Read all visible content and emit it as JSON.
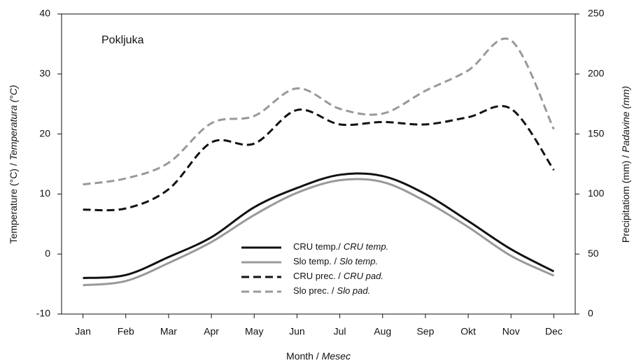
{
  "chart_data": {
    "type": "line",
    "annotation": "Pokljuka",
    "xlabel": [
      "Month /",
      "Mesec"
    ],
    "ylabel": [
      "Temperature (°C) /",
      "Temperatura (°C)"
    ],
    "y2label": [
      "Precipitatiom (mm) /",
      "Padavine (mm)"
    ],
    "categories": [
      "Jan",
      "Feb",
      "Mar",
      "Apr",
      "May",
      "Jun",
      "Jul",
      "Aug",
      "Sep",
      "Okt",
      "Nov",
      "Dec"
    ],
    "ylim": [
      -10,
      40
    ],
    "yticks": [
      -10,
      0,
      10,
      20,
      30,
      40
    ],
    "y2lim": [
      0,
      250
    ],
    "y2ticks": [
      0,
      50,
      100,
      150,
      200,
      250
    ],
    "series": [
      {
        "name": "CRU temp./",
        "name_local": "CRU temp.",
        "color": "#111111",
        "dash": false,
        "axis": "y",
        "values": [
          -4.0,
          -3.5,
          -0.5,
          2.8,
          7.8,
          11.0,
          13.2,
          13.0,
          10.0,
          5.5,
          0.8,
          -2.9
        ]
      },
      {
        "name": "Slo temp. /",
        "name_local": "Slo temp.",
        "color": "#999999",
        "dash": false,
        "axis": "y",
        "values": [
          -5.2,
          -4.5,
          -1.5,
          2.0,
          6.5,
          10.2,
          12.3,
          12.0,
          8.8,
          4.5,
          -0.3,
          -3.6
        ]
      },
      {
        "name": "CRU prec. /",
        "name_local": "CRU pad.",
        "color": "#111111",
        "dash": true,
        "axis": "y2",
        "values": [
          87,
          88,
          104,
          143,
          142,
          170,
          158,
          160,
          158,
          164,
          171,
          120
        ]
      },
      {
        "name": "Slo prec. /",
        "name_local": "Slo pad.",
        "color": "#999999",
        "dash": true,
        "axis": "y2",
        "values": [
          108,
          113,
          126,
          159,
          165,
          188,
          171,
          167,
          186,
          203,
          228,
          154
        ]
      }
    ]
  }
}
